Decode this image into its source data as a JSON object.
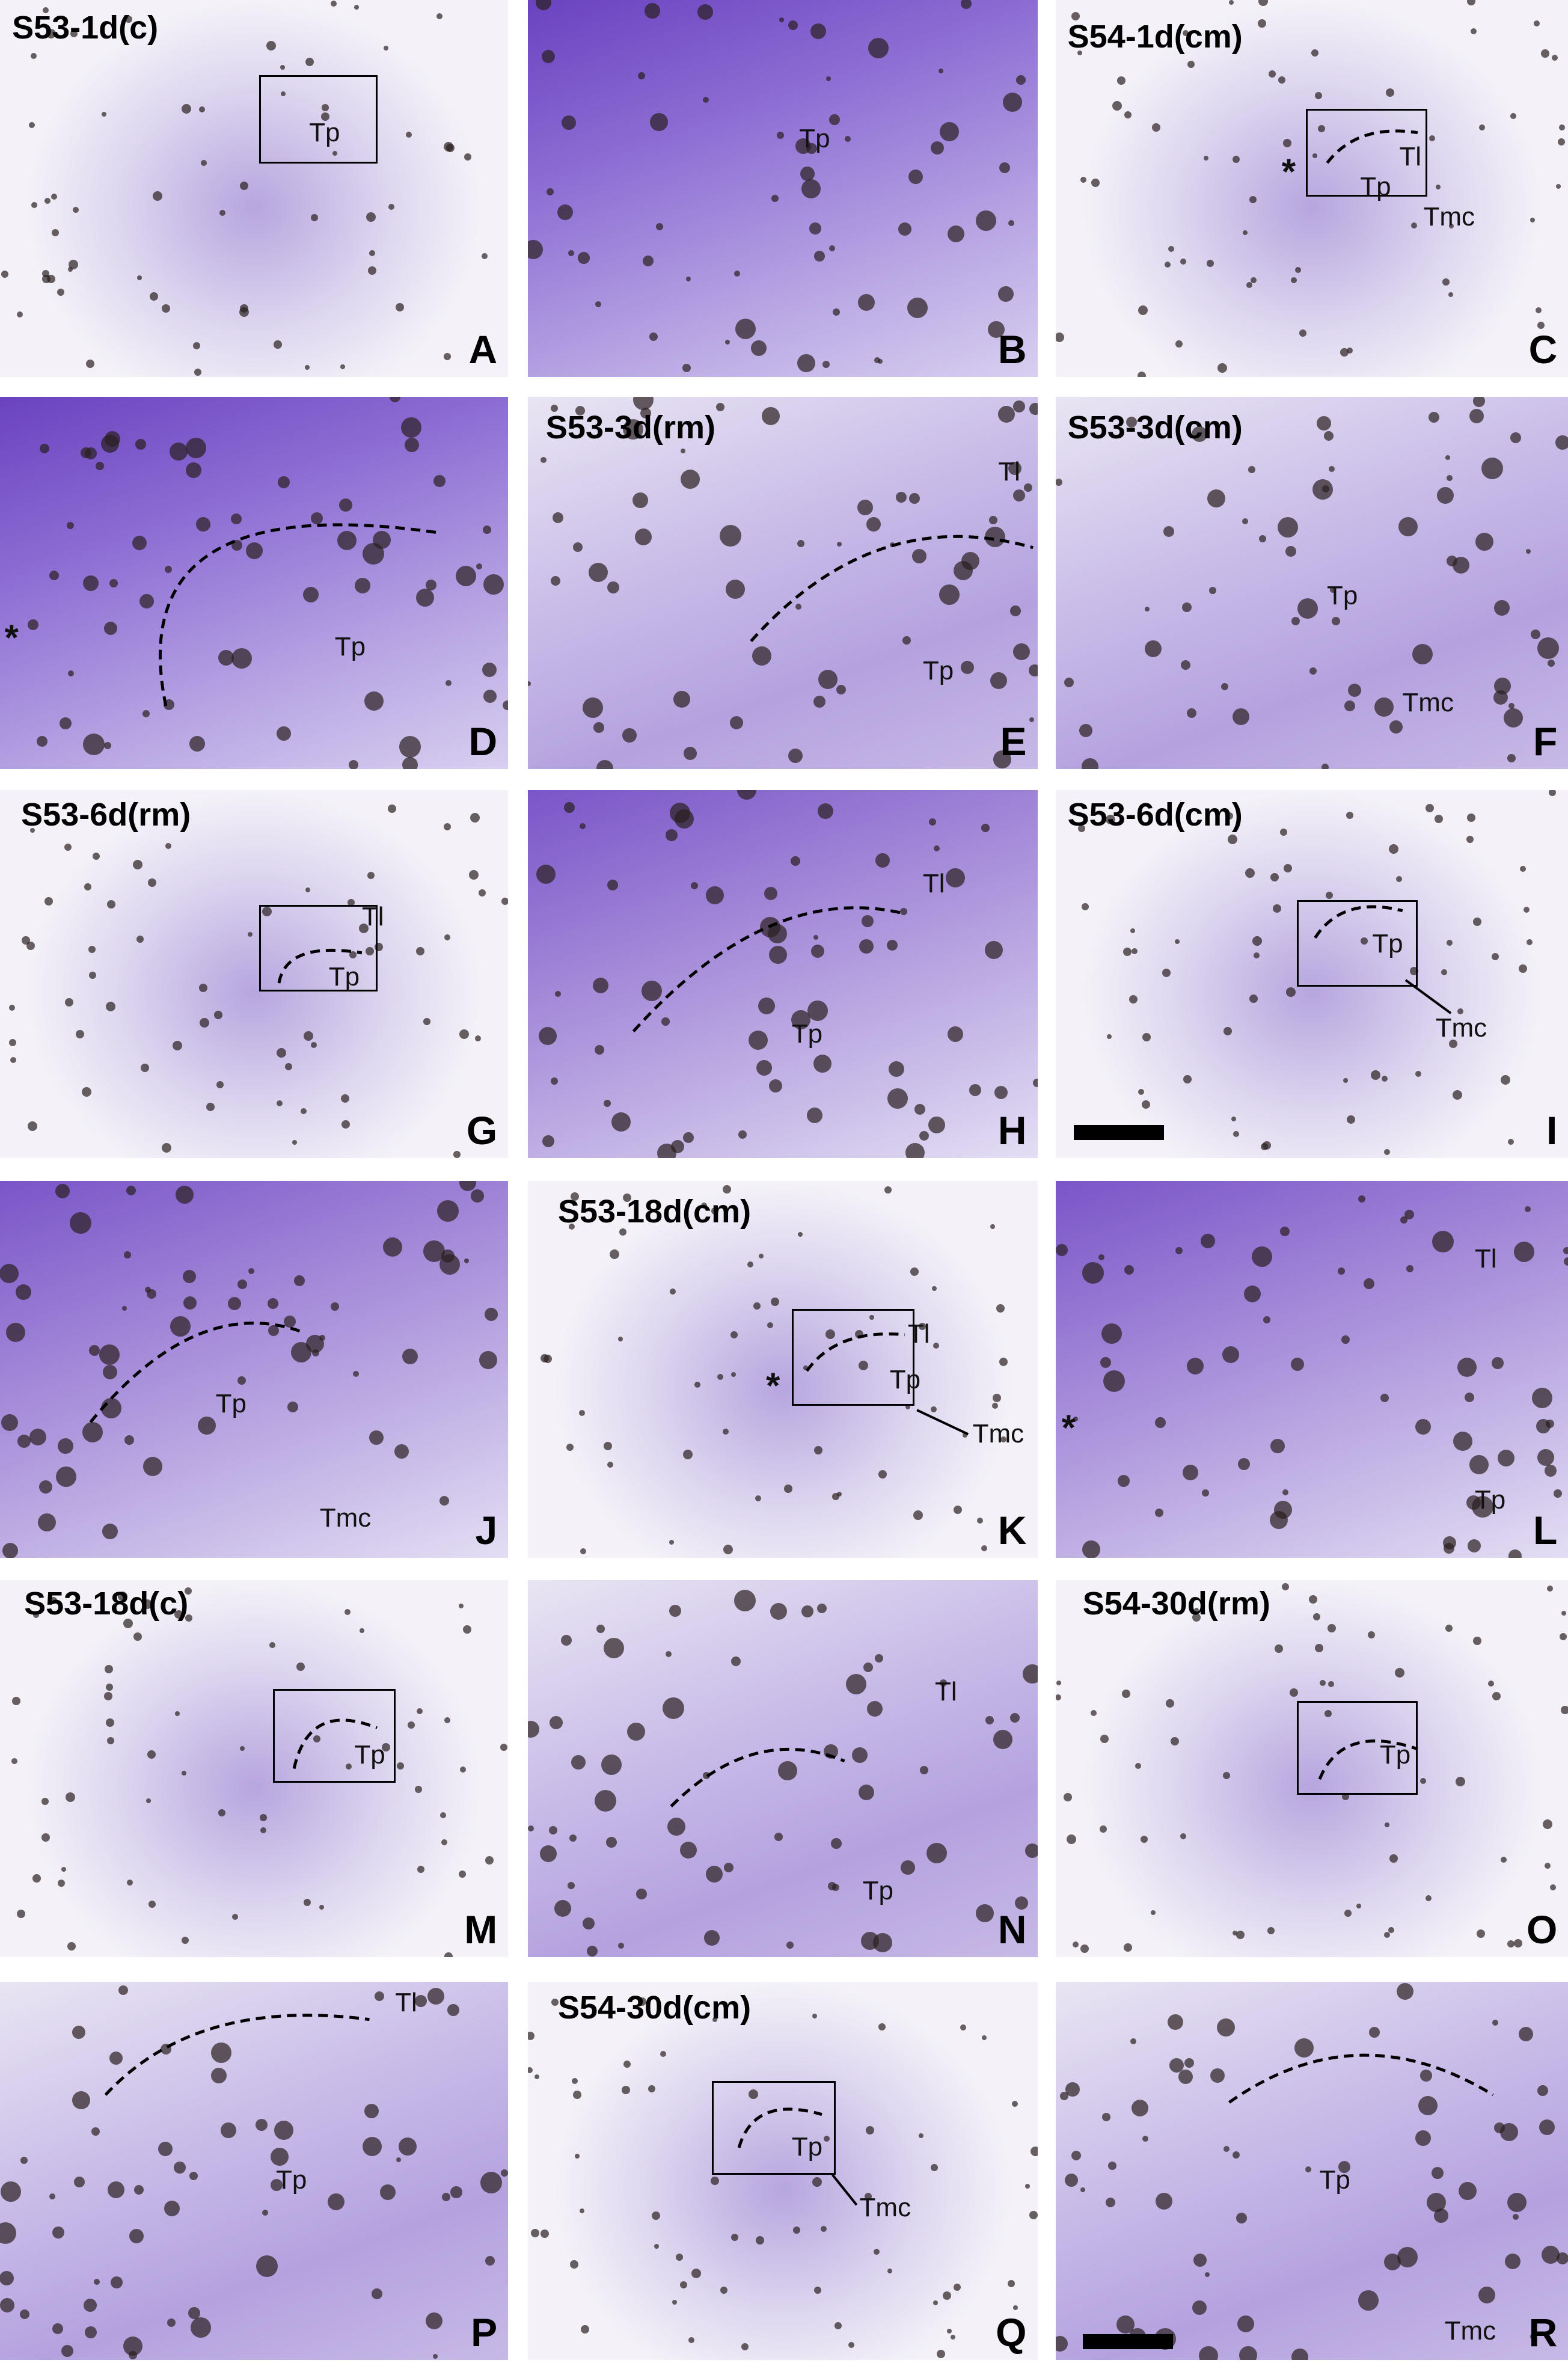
{
  "figure": {
    "panels": [
      {
        "letter": "A",
        "title": "S53-1d(c)",
        "labels": [
          "Tp"
        ],
        "bg": "light"
      },
      {
        "letter": "B",
        "title": "",
        "labels": [
          "Tp"
        ],
        "bg": "dense"
      },
      {
        "letter": "C",
        "title": "S54-1d(cm)",
        "labels": [
          "*",
          "Tl",
          "Tp",
          "Tmc"
        ],
        "bg": "light"
      },
      {
        "letter": "D",
        "title": "",
        "labels": [
          "*",
          "Tp"
        ],
        "bg": "dense"
      },
      {
        "letter": "E",
        "title": "S53-3d(rm)",
        "labels": [
          "Tl",
          "Tp"
        ],
        "bg": "pale"
      },
      {
        "letter": "F",
        "title": "S53-3d(cm)",
        "labels": [
          "Tp",
          "Tmc"
        ],
        "bg": "pale"
      },
      {
        "letter": "G",
        "title": "S53-6d(rm)",
        "labels": [
          "Tl",
          "Tp"
        ],
        "bg": "light"
      },
      {
        "letter": "H",
        "title": "",
        "labels": [
          "Tl",
          "Tp"
        ],
        "bg": "medium"
      },
      {
        "letter": "I",
        "title": "S53-6d(cm)",
        "labels": [
          "Tp",
          "Tmc"
        ],
        "bg": "light"
      },
      {
        "letter": "J",
        "title": "",
        "labels": [
          "Tp",
          "Tmc"
        ],
        "bg": "medium"
      },
      {
        "letter": "K",
        "title": "S53-18d(cm)",
        "labels": [
          "*",
          "Tl",
          "Tp",
          "Tmc"
        ],
        "bg": "light"
      },
      {
        "letter": "L",
        "title": "",
        "labels": [
          "Tl",
          "*",
          "Tp"
        ],
        "bg": "medium"
      },
      {
        "letter": "M",
        "title": "S53-18d(c)",
        "labels": [
          "Tp"
        ],
        "bg": "light"
      },
      {
        "letter": "N",
        "title": "",
        "labels": [
          "Tl",
          "Tp"
        ],
        "bg": "pale"
      },
      {
        "letter": "O",
        "title": "S54-30d(rm)",
        "labels": [
          "Tp"
        ],
        "bg": "light"
      },
      {
        "letter": "P",
        "title": "",
        "labels": [
          "Tl",
          "Tp"
        ],
        "bg": "pale"
      },
      {
        "letter": "Q",
        "title": "S54-30d(cm)",
        "labels": [
          "Tp",
          "Tmc"
        ],
        "bg": "light"
      },
      {
        "letter": "R",
        "title": "",
        "labels": [
          "Tp",
          "Tmc"
        ],
        "bg": "pale"
      }
    ],
    "colors": {
      "stain": "#7b5cc4",
      "grain": "#2a2020",
      "background": "#f4f2f8"
    }
  }
}
